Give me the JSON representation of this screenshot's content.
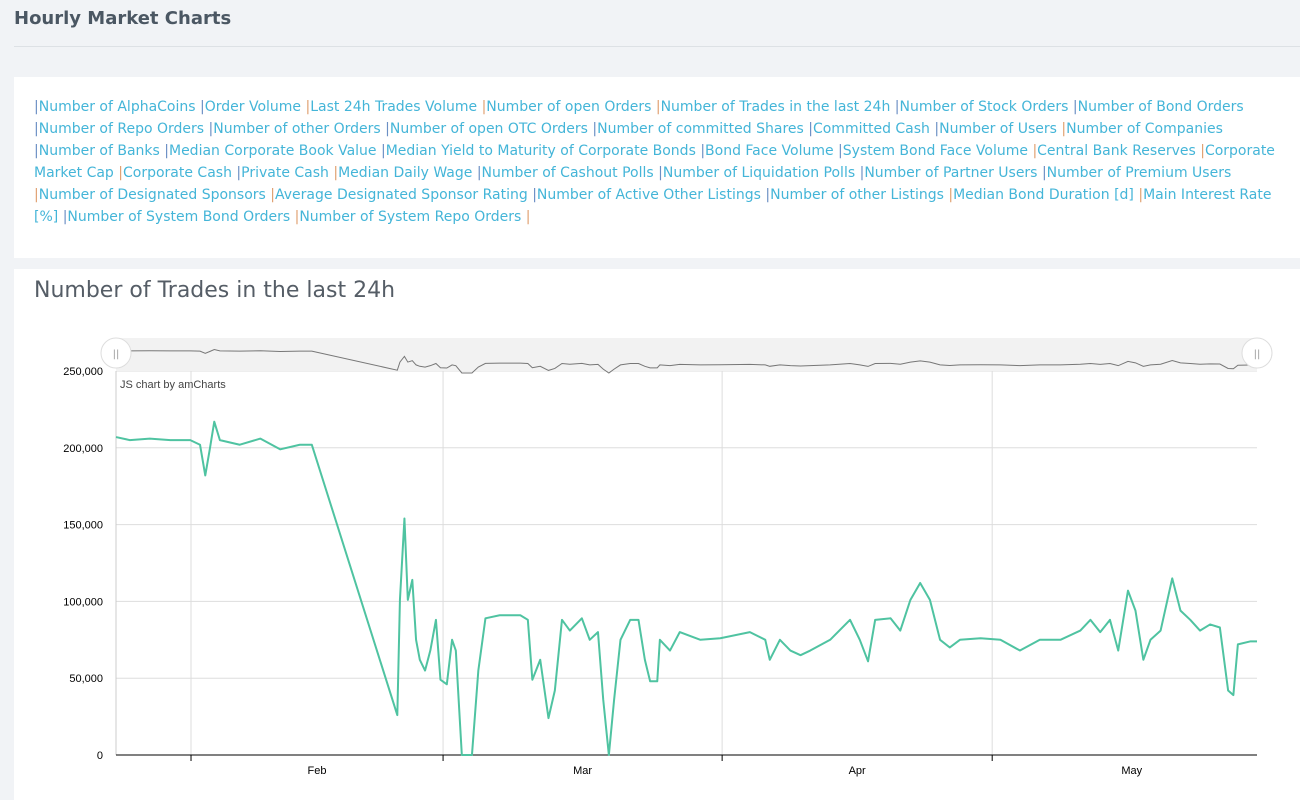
{
  "header": {
    "title": "Hourly Market Charts"
  },
  "links": [
    "Number of AlphaCoins",
    "Order Volume",
    "Last 24h Trades Volume",
    "Number of open Orders",
    "Number of Trades in the last 24h",
    "Number of Stock Orders",
    "Number of Bond Orders",
    "Number of Repo Orders",
    "Number of other Orders",
    "Number of open OTC Orders",
    "Number of committed Shares",
    "Committed Cash",
    "Number of Users",
    "Number of Companies",
    "Number of Banks",
    "Median Corporate Book Value",
    "Median Yield to Maturity of Corporate Bonds",
    "Bond Face Volume",
    "System Bond Face Volume",
    "Central Bank Reserves",
    "Corporate Market Cap",
    "Corporate Cash",
    "Private Cash",
    "Median Daily Wage",
    "Number of Cashout Polls",
    "Number of Liquidation Polls",
    "Number of Partner Users",
    "Number of Premium Users",
    "Number of Designated Sponsors",
    "Average Designated Sponsor Rating",
    "Number of Active Other Listings",
    "Number of other Listings",
    "Median Bond Duration [d]",
    "Main Interest Rate [%]",
    "Number of System Bond Orders",
    "Number of System Repo Orders"
  ],
  "chart": {
    "title": "Number of Trades in the last 24h",
    "credit": "JS chart by amCharts",
    "color": "#4fc3a1"
  },
  "chart_data": {
    "type": "line",
    "title": "Number of Trades in the last 24h",
    "ylim": [
      0,
      250000
    ],
    "yticks": [
      "0",
      "50,000",
      "100,000",
      "150,000",
      "200,000",
      "250,000"
    ],
    "xticks": [
      "Feb",
      "Mar",
      "Apr",
      "May"
    ],
    "xrange": [
      "Jan 23 16",
      "May 30 10"
    ],
    "grid": true,
    "scrollbar": true,
    "points": [
      [
        "Jan 23 16",
        207000
      ],
      [
        "Jan 25 05",
        205000
      ],
      [
        "Jan 27 10",
        206000
      ],
      [
        "Jan 29 17",
        205000
      ],
      [
        "Jan 31 22",
        205000
      ],
      [
        "Feb 2 00",
        202000
      ],
      [
        "Feb 2 14",
        182000
      ],
      [
        "Feb 3 02",
        199000
      ],
      [
        "Feb 3 14",
        217000
      ],
      [
        "Feb 4 05",
        205000
      ],
      [
        "Feb 6 10",
        202000
      ],
      [
        "Feb 8 17",
        206000
      ],
      [
        "Feb 10 22",
        199000
      ],
      [
        "Feb 13 02",
        202000
      ],
      [
        "Feb 14 10",
        202000
      ],
      [
        "Feb 23 22",
        26000
      ],
      [
        "Feb 24 05",
        101000
      ],
      [
        "Feb 24 17",
        154000
      ],
      [
        "Feb 25 02",
        101000
      ],
      [
        "Feb 25 14",
        114000
      ],
      [
        "Feb 26 00",
        75000
      ],
      [
        "Feb 26 10",
        62000
      ],
      [
        "Feb 27 00",
        55000
      ],
      [
        "Feb 27 14",
        68000
      ],
      [
        "Feb 28 05",
        88000
      ],
      [
        "Feb 28 17",
        49000
      ],
      [
        "Mar 1 10",
        46000
      ],
      [
        "Mar 2 00",
        75000
      ],
      [
        "Mar 2 10",
        68000
      ],
      [
        "Mar 3 02",
        0
      ],
      [
        "Mar 4 05",
        0
      ],
      [
        "Mar 4 22",
        55000
      ],
      [
        "Mar 5 17",
        89000
      ],
      [
        "Mar 7 07",
        91000
      ],
      [
        "Mar 9 14",
        91000
      ],
      [
        "Mar 10 10",
        88000
      ],
      [
        "Mar 10 22",
        49000
      ],
      [
        "Mar 11 19",
        62000
      ],
      [
        "Mar 12 17",
        24000
      ],
      [
        "Mar 13 10",
        42000
      ],
      [
        "Mar 14 05",
        88000
      ],
      [
        "Mar 15 02",
        81000
      ],
      [
        "Mar 16 10",
        89000
      ],
      [
        "Mar 17 07",
        75000
      ],
      [
        "Mar 18 05",
        80000
      ],
      [
        "Mar 18 19",
        36000
      ],
      [
        "Mar 19 10",
        0
      ],
      [
        "Mar 20 00",
        36000
      ],
      [
        "Mar 20 17",
        75000
      ],
      [
        "Mar 21 19",
        88000
      ],
      [
        "Mar 22 17",
        88000
      ],
      [
        "Mar 23 10",
        62000
      ],
      [
        "Mar 24 00",
        48000
      ],
      [
        "Mar 24 19",
        48000
      ],
      [
        "Mar 25 02",
        75000
      ],
      [
        "Mar 26 05",
        68000
      ],
      [
        "Mar 27 07",
        80000
      ],
      [
        "Mar 29 14",
        75000
      ],
      [
        "Mar 31 19",
        76000
      ],
      [
        "Apr 4 02",
        80000
      ],
      [
        "Apr 5 19",
        75000
      ],
      [
        "Apr 6 07",
        62000
      ],
      [
        "Apr 7 10",
        75000
      ],
      [
        "Apr 8 14",
        68000
      ],
      [
        "Apr 9 17",
        65000
      ],
      [
        "Apr 10 19",
        68000
      ],
      [
        "Apr 13 00",
        75000
      ],
      [
        "Apr 15 05",
        88000
      ],
      [
        "Apr 16 07",
        75000
      ],
      [
        "Apr 17 05",
        61000
      ],
      [
        "Apr 18 00",
        88000
      ],
      [
        "Apr 19 17",
        89000
      ],
      [
        "Apr 20 19",
        81000
      ],
      [
        "Apr 21 22",
        101000
      ],
      [
        "Apr 23 00",
        112000
      ],
      [
        "Apr 24 02",
        101000
      ],
      [
        "Apr 25 05",
        75000
      ],
      [
        "Apr 26 07",
        70000
      ],
      [
        "Apr 27 10",
        75000
      ],
      [
        "Apr 29 17",
        76000
      ],
      [
        "May 1 22",
        75000
      ],
      [
        "May 4 02",
        68000
      ],
      [
        "May 6 07",
        75000
      ],
      [
        "May 8 14",
        75000
      ],
      [
        "May 10 19",
        81000
      ],
      [
        "May 11 22",
        88000
      ],
      [
        "May 13 00",
        80000
      ],
      [
        "May 14 02",
        88000
      ],
      [
        "May 15 00",
        68000
      ],
      [
        "May 16 02",
        107000
      ],
      [
        "May 16 22",
        94000
      ],
      [
        "May 17 19",
        62000
      ],
      [
        "May 18 14",
        75000
      ],
      [
        "May 19 17",
        81000
      ],
      [
        "May 21 00",
        115000
      ],
      [
        "May 21 22",
        94000
      ],
      [
        "May 23 00",
        88000
      ],
      [
        "May 24 02",
        81000
      ],
      [
        "May 25 05",
        85000
      ],
      [
        "May 26 07",
        83000
      ],
      [
        "May 27 05",
        42000
      ],
      [
        "May 27 19",
        39000
      ],
      [
        "May 28 07",
        72000
      ],
      [
        "May 29 17",
        74000
      ],
      [
        "May 30 10",
        74000
      ]
    ]
  }
}
